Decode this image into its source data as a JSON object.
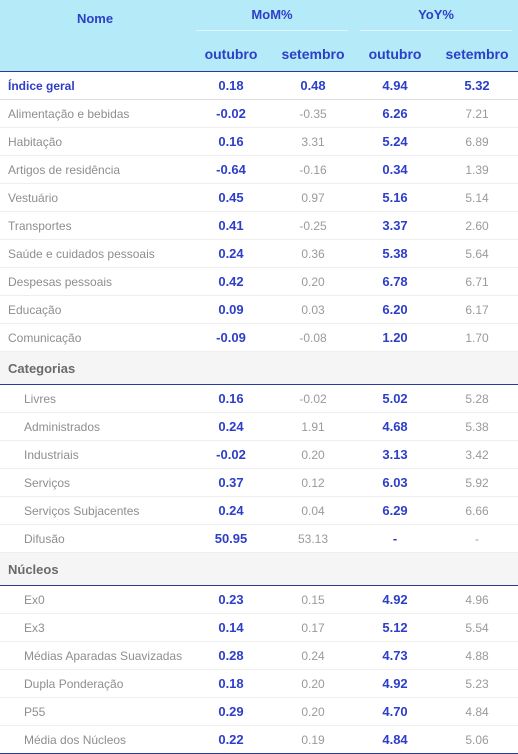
{
  "header": {
    "name_label": "Nome",
    "mom_label": "MoM%",
    "yoy_label": "YoY%",
    "month_current": "outubro",
    "month_previous": "setembro"
  },
  "headline": {
    "name": "Índice geral",
    "mom_out": "0.18",
    "mom_set": "0.48",
    "yoy_out": "4.94",
    "yoy_set": "5.32"
  },
  "groups": [
    {
      "name": "Alimentação e bebidas",
      "mom_out": "-0.02",
      "mom_set": "-0.35",
      "yoy_out": "6.26",
      "yoy_set": "7.21"
    },
    {
      "name": "Habitação",
      "mom_out": "0.16",
      "mom_set": "3.31",
      "yoy_out": "5.24",
      "yoy_set": "6.89"
    },
    {
      "name": "Artigos de residência",
      "mom_out": "-0.64",
      "mom_set": "-0.16",
      "yoy_out": "0.34",
      "yoy_set": "1.39"
    },
    {
      "name": "Vestuário",
      "mom_out": "0.45",
      "mom_set": "0.97",
      "yoy_out": "5.16",
      "yoy_set": "5.14"
    },
    {
      "name": "Transportes",
      "mom_out": "0.41",
      "mom_set": "-0.25",
      "yoy_out": "3.37",
      "yoy_set": "2.60"
    },
    {
      "name": "Saúde e cuidados pessoais",
      "mom_out": "0.24",
      "mom_set": "0.36",
      "yoy_out": "5.38",
      "yoy_set": "5.64"
    },
    {
      "name": "Despesas pessoais",
      "mom_out": "0.42",
      "mom_set": "0.20",
      "yoy_out": "6.78",
      "yoy_set": "6.71"
    },
    {
      "name": "Educação",
      "mom_out": "0.09",
      "mom_set": "0.03",
      "yoy_out": "6.20",
      "yoy_set": "6.17"
    },
    {
      "name": "Comunicação",
      "mom_out": "-0.09",
      "mom_set": "-0.08",
      "yoy_out": "1.20",
      "yoy_set": "1.70"
    }
  ],
  "categorias": {
    "title": "Categorias",
    "rows": [
      {
        "name": "Livres",
        "mom_out": "0.16",
        "mom_set": "-0.02",
        "yoy_out": "5.02",
        "yoy_set": "5.28"
      },
      {
        "name": "Administrados",
        "mom_out": "0.24",
        "mom_set": "1.91",
        "yoy_out": "4.68",
        "yoy_set": "5.38"
      },
      {
        "name": "Industriais",
        "mom_out": "-0.02",
        "mom_set": "0.20",
        "yoy_out": "3.13",
        "yoy_set": "3.42"
      },
      {
        "name": "Serviços",
        "mom_out": "0.37",
        "mom_set": "0.12",
        "yoy_out": "6.03",
        "yoy_set": "5.92"
      },
      {
        "name": "Serviços Subjacentes",
        "mom_out": "0.24",
        "mom_set": "0.04",
        "yoy_out": "6.29",
        "yoy_set": "6.66"
      },
      {
        "name": "Difusão",
        "mom_out": "50.95",
        "mom_set": "53.13",
        "yoy_out": "-",
        "yoy_set": "-"
      }
    ]
  },
  "nucleos": {
    "title": "Núcleos",
    "rows": [
      {
        "name": "Ex0",
        "mom_out": "0.23",
        "mom_set": "0.15",
        "yoy_out": "4.92",
        "yoy_set": "4.96"
      },
      {
        "name": "Ex3",
        "mom_out": "0.14",
        "mom_set": "0.17",
        "yoy_out": "5.12",
        "yoy_set": "5.54"
      },
      {
        "name": "Médias Aparadas Suavizadas",
        "mom_out": "0.28",
        "mom_set": "0.24",
        "yoy_out": "4.73",
        "yoy_set": "4.88"
      },
      {
        "name": "Dupla Ponderação",
        "mom_out": "0.18",
        "mom_set": "0.20",
        "yoy_out": "4.92",
        "yoy_set": "5.23"
      },
      {
        "name": "P55",
        "mom_out": "0.29",
        "mom_set": "0.20",
        "yoy_out": "4.70",
        "yoy_set": "4.84"
      },
      {
        "name": "Média dos Núcleos",
        "mom_out": "0.22",
        "mom_set": "0.19",
        "yoy_out": "4.84",
        "yoy_set": "5.06"
      }
    ]
  }
}
